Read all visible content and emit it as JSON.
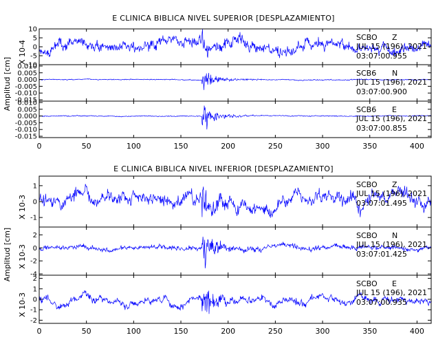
{
  "chart_data": [
    {
      "type": "line",
      "title": "E CLINICA BIBLICA NIVEL SUPERIOR [DESPLAZAMIENTO]",
      "ylabel": "Amplitud [cm]",
      "xlim": [
        0,
        415
      ],
      "x_ticks": [
        "0",
        "50",
        "100",
        "150",
        "200",
        "250",
        "300",
        "350",
        "400"
      ],
      "line_color": "#0000ff",
      "panels": [
        {
          "scale_label": "X 10-4",
          "y_ticks": [
            "10",
            "5",
            "0",
            "-5",
            "-10"
          ],
          "ylim": [
            -10,
            10
          ],
          "station": "SCBO",
          "component": "Z",
          "date": "JUL 15 (196), 2021",
          "time": "03:07:00.955",
          "noise": 2.2,
          "walk": 4.0,
          "burst": 5.0,
          "seed": 11,
          "event_x": 172
        },
        {
          "scale_label": "",
          "y_ticks": [
            "0.010",
            "0.005",
            "0.000",
            "-0.005",
            "-0.010",
            "-0.015"
          ],
          "ylim": [
            -0.016,
            0.011
          ],
          "station": "SCB6",
          "component": "N",
          "date": "JUL 15 (196), 2021",
          "time": "03:07:00.900",
          "noise": 0.0003,
          "walk": 0.0003,
          "burst": 0.007,
          "seed": 23,
          "event_x": 172
        },
        {
          "scale_label": "",
          "y_ticks": [
            "0.010",
            "0.005",
            "0.000",
            "-0.005",
            "-0.010",
            "-0.015"
          ],
          "ylim": [
            -0.016,
            0.011
          ],
          "station": "SCB6",
          "component": "E",
          "date": "JUL 15 (196), 2021",
          "time": "03:07:00.855",
          "noise": 0.0003,
          "walk": 0.0003,
          "burst": 0.008,
          "seed": 37,
          "event_x": 172
        }
      ]
    },
    {
      "type": "line",
      "title": "E CLINICA BIBLICA NIVEL INFERIOR [DESPLAZAMIENTO]",
      "ylabel": "Amplitud [cm]",
      "xlim": [
        0,
        415
      ],
      "x_ticks": [
        "0",
        "50",
        "100",
        "150",
        "200",
        "250",
        "300",
        "350",
        "400"
      ],
      "line_color": "#0000ff",
      "panels": [
        {
          "scale_label": "X 10-3",
          "y_ticks": [
            "1",
            "0",
            "-1"
          ],
          "ylim": [
            -1.6,
            1.6
          ],
          "station": "SCBO",
          "component": "Z",
          "date": "JUL 15 (196), 2021",
          "time": "03:07:01.495",
          "noise": 0.3,
          "walk": 0.55,
          "burst": 0.9,
          "seed": 51,
          "event_x": 172
        },
        {
          "scale_label": "X 10-3",
          "y_ticks": [
            "2",
            "0",
            "-2",
            "-4"
          ],
          "ylim": [
            -4.2,
            3.2
          ],
          "station": "SCBO",
          "component": "N",
          "date": "JUL 15 (196), 2021",
          "time": "03:07:01.425",
          "noise": 0.3,
          "walk": 0.35,
          "burst": 2.8,
          "seed": 67,
          "event_x": 172
        },
        {
          "scale_label": "X 10-3",
          "y_ticks": [
            "2",
            "1",
            "0",
            "-1",
            "-2"
          ],
          "ylim": [
            -2.3,
            2.3
          ],
          "station": "SCBO",
          "component": "E",
          "date": "JUL 15 (196), 2021",
          "time": "03:07:00.935",
          "noise": 0.25,
          "walk": 0.55,
          "burst": 1.7,
          "seed": 83,
          "event_x": 172
        }
      ]
    }
  ]
}
